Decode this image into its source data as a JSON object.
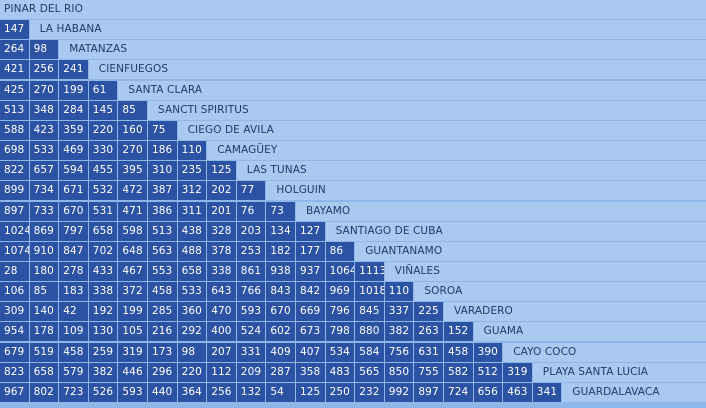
{
  "table": {
    "cities": [
      "PINAR DEL RIO",
      "LA HABANA",
      "MATANZAS",
      "CIENFUEGOS",
      "SANTA CLARA",
      "SANCTI SPIRITUS",
      "CIEGO DE AVILA",
      "CAMAGÜEY",
      "LAS TUNAS",
      "HOLGUIN",
      "BAYAMO",
      "SANTIAGO DE CUBA",
      "GUANTANAMO",
      "VIÑALES",
      "SOROA",
      "VARADERO",
      "GUAMA",
      "CAYO COCO",
      "PLAYA SANTA LUCIA",
      "GUARDALAVACA"
    ],
    "rows": [
      [],
      [
        "147"
      ],
      [
        "264",
        "98"
      ],
      [
        "421",
        "256",
        "241"
      ],
      [
        "425",
        "270",
        "199",
        "61"
      ],
      [
        "513",
        "348",
        "284",
        "145",
        "85"
      ],
      [
        "588",
        "423",
        "359",
        "220",
        "160",
        "75"
      ],
      [
        "698",
        "533",
        "469",
        "330",
        "270",
        "186",
        "110"
      ],
      [
        "822",
        "657",
        "594",
        "455",
        "395",
        "310",
        "235",
        "125"
      ],
      [
        "899",
        "734",
        "671",
        "532",
        "472",
        "387",
        "312",
        "202",
        "77"
      ],
      [
        "897",
        "733",
        "670",
        "531",
        "471",
        "386",
        "311",
        "201",
        "76",
        "73"
      ],
      [
        "1024",
        "869",
        "797",
        "658",
        "598",
        "513",
        "438",
        "328",
        "203",
        "134",
        "127"
      ],
      [
        "1074",
        "910",
        "847",
        "702",
        "648",
        "563",
        "488",
        "378",
        "253",
        "182",
        "177",
        "86"
      ],
      [
        "28",
        "180",
        "278",
        "433",
        "467",
        "553",
        "658",
        "338",
        "861",
        "938",
        "937",
        "1064",
        "1113"
      ],
      [
        "106",
        "85",
        "183",
        "338",
        "372",
        "458",
        "533",
        "643",
        "766",
        "843",
        "842",
        "969",
        "1018",
        "110"
      ],
      [
        "309",
        "140",
        "42",
        "192",
        "199",
        "285",
        "360",
        "470",
        "593",
        "670",
        "669",
        "796",
        "845",
        "337",
        "225"
      ],
      [
        "954",
        "178",
        "109",
        "130",
        "105",
        "216",
        "292",
        "400",
        "524",
        "602",
        "673",
        "798",
        "880",
        "382",
        "263",
        "152"
      ],
      [
        "679",
        "519",
        "458",
        "259",
        "319",
        "173",
        "98",
        "207",
        "331",
        "409",
        "407",
        "534",
        "584",
        "756",
        "631",
        "458",
        "390"
      ],
      [
        "823",
        "658",
        "579",
        "382",
        "446",
        "296",
        "220",
        "112",
        "209",
        "287",
        "358",
        "483",
        "565",
        "850",
        "755",
        "582",
        "512",
        "319"
      ],
      [
        "967",
        "802",
        "723",
        "526",
        "593",
        "440",
        "364",
        "256",
        "132",
        "54",
        "125",
        "250",
        "232",
        "992",
        "897",
        "724",
        "656",
        "463",
        "341"
      ]
    ]
  },
  "colors": {
    "number_cell": "#2b52a3",
    "name_cell": "#a9c9f1",
    "background": "#8fb6e9"
  }
}
